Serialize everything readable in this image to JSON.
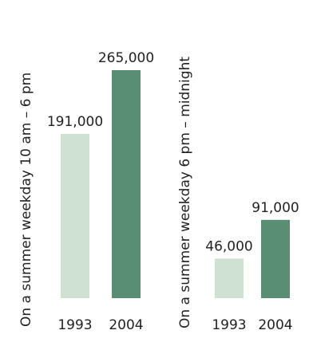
{
  "chart_data": [
    {
      "type": "bar",
      "title": "On a summer weekday 10 am – 6 pm",
      "categories": [
        "1993",
        "2004"
      ],
      "values": [
        191000,
        265000
      ],
      "value_labels": [
        "191,000",
        "265,000"
      ],
      "colors": [
        "#cfe2d2",
        "#5a8e74"
      ]
    },
    {
      "type": "bar",
      "title": "On a summer weekday 6 pm – midnight",
      "categories": [
        "1993",
        "2004"
      ],
      "values": [
        46000,
        91000
      ],
      "value_labels": [
        "46,000",
        "91,000"
      ],
      "colors": [
        "#cfe2d2",
        "#5a8e74"
      ]
    }
  ]
}
